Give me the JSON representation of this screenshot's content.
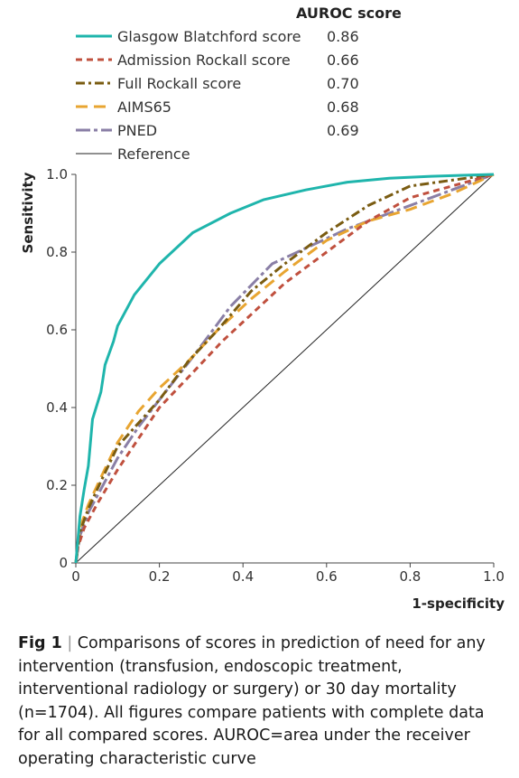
{
  "chart_data": {
    "type": "line",
    "xlabel": "1-specificity",
    "ylabel": "Sensitivity",
    "xlim": [
      0,
      1
    ],
    "ylim": [
      0,
      1
    ],
    "x_ticks": [
      "0",
      "0.2",
      "0.4",
      "0.6",
      "0.8",
      "1.0"
    ],
    "y_ticks": [
      "0",
      "0.2",
      "0.4",
      "0.6",
      "0.8",
      "1.0"
    ],
    "legend_header": "AUROC score",
    "legend_position": "top",
    "series": [
      {
        "name": "Glasgow Blatchford score",
        "auroc": "0.86",
        "color": "#1fb5ac",
        "dash": "solid",
        "points": [
          [
            0,
            0
          ],
          [
            0.005,
            0.06
          ],
          [
            0.01,
            0.12
          ],
          [
            0.02,
            0.19
          ],
          [
            0.03,
            0.25
          ],
          [
            0.04,
            0.37
          ],
          [
            0.06,
            0.44
          ],
          [
            0.07,
            0.51
          ],
          [
            0.09,
            0.57
          ],
          [
            0.1,
            0.61
          ],
          [
            0.14,
            0.69
          ],
          [
            0.2,
            0.77
          ],
          [
            0.28,
            0.85
          ],
          [
            0.37,
            0.9
          ],
          [
            0.45,
            0.935
          ],
          [
            0.55,
            0.96
          ],
          [
            0.65,
            0.98
          ],
          [
            0.75,
            0.99
          ],
          [
            0.85,
            0.995
          ],
          [
            1,
            1
          ]
        ]
      },
      {
        "name": "Admission Rockall score",
        "auroc": "0.66",
        "color": "#c0503e",
        "dash": "dashed",
        "points": [
          [
            0,
            0
          ],
          [
            0.005,
            0.04
          ],
          [
            0.02,
            0.09
          ],
          [
            0.05,
            0.15
          ],
          [
            0.1,
            0.24
          ],
          [
            0.15,
            0.32
          ],
          [
            0.2,
            0.4
          ],
          [
            0.28,
            0.49
          ],
          [
            0.35,
            0.57
          ],
          [
            0.42,
            0.64
          ],
          [
            0.5,
            0.72
          ],
          [
            0.6,
            0.8
          ],
          [
            0.7,
            0.88
          ],
          [
            0.8,
            0.94
          ],
          [
            0.9,
            0.97
          ],
          [
            1,
            1
          ]
        ]
      },
      {
        "name": "Full Rockall score",
        "auroc": "0.70",
        "color": "#7a5c12",
        "dash": "dashdot",
        "points": [
          [
            0,
            0
          ],
          [
            0.01,
            0.08
          ],
          [
            0.03,
            0.14
          ],
          [
            0.06,
            0.21
          ],
          [
            0.1,
            0.3
          ],
          [
            0.15,
            0.36
          ],
          [
            0.2,
            0.42
          ],
          [
            0.27,
            0.52
          ],
          [
            0.34,
            0.6
          ],
          [
            0.42,
            0.7
          ],
          [
            0.5,
            0.77
          ],
          [
            0.6,
            0.85
          ],
          [
            0.7,
            0.92
          ],
          [
            0.8,
            0.97
          ],
          [
            0.9,
            0.985
          ],
          [
            1,
            1
          ]
        ]
      },
      {
        "name": "AIMS65",
        "auroc": "0.68",
        "color": "#e8a531",
        "dash": "longdash",
        "points": [
          [
            0,
            0
          ],
          [
            0.01,
            0.09
          ],
          [
            0.03,
            0.15
          ],
          [
            0.06,
            0.22
          ],
          [
            0.1,
            0.31
          ],
          [
            0.15,
            0.39
          ],
          [
            0.2,
            0.45
          ],
          [
            0.27,
            0.52
          ],
          [
            0.34,
            0.6
          ],
          [
            0.42,
            0.68
          ],
          [
            0.5,
            0.75
          ],
          [
            0.6,
            0.83
          ],
          [
            0.7,
            0.88
          ],
          [
            0.8,
            0.91
          ],
          [
            0.9,
            0.95
          ],
          [
            1,
            1
          ]
        ]
      },
      {
        "name": "PNED",
        "auroc": "0.69",
        "color": "#8a7fa6",
        "dash": "dashdotlong",
        "points": [
          [
            0,
            0
          ],
          [
            0.01,
            0.07
          ],
          [
            0.03,
            0.13
          ],
          [
            0.06,
            0.19
          ],
          [
            0.1,
            0.27
          ],
          [
            0.15,
            0.35
          ],
          [
            0.2,
            0.42
          ],
          [
            0.28,
            0.53
          ],
          [
            0.37,
            0.66
          ],
          [
            0.47,
            0.77
          ],
          [
            0.55,
            0.81
          ],
          [
            0.65,
            0.86
          ],
          [
            0.75,
            0.9
          ],
          [
            0.85,
            0.94
          ],
          [
            1,
            1
          ]
        ]
      },
      {
        "name": "Reference",
        "auroc": "",
        "color": "#222222",
        "dash": "solid",
        "points": [
          [
            0,
            0
          ],
          [
            1,
            1
          ]
        ]
      }
    ]
  },
  "caption": {
    "label": "Fig 1",
    "separator": "|",
    "text": " Comparisons of scores in prediction of need for any intervention (transfusion, endoscopic treatment, interventional radiology or surgery) or 30 day mortality (n=1704). All figures compare patients with complete data for all compared scores. AUROC=area under the receiver operating characteristic curve"
  }
}
